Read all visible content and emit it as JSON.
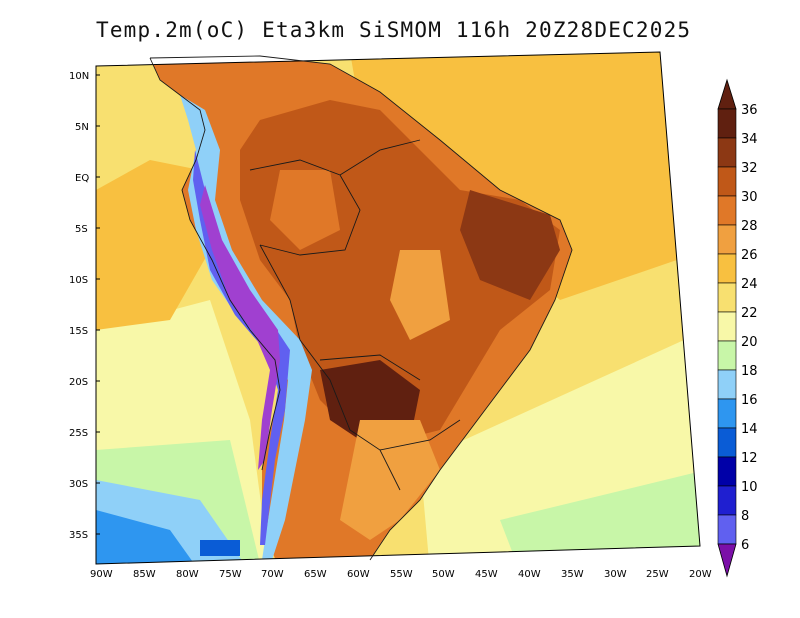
{
  "title": "Temp.2m(oC) Eta3km SiSMOM 116h 20Z28DEC2025",
  "map": {
    "variable": "2 m temperature",
    "units": "oC",
    "lat_ticks": [
      "10N",
      "5N",
      "EQ",
      "5S",
      "10S",
      "15S",
      "20S",
      "25S",
      "30S",
      "35S"
    ],
    "lon_ticks": [
      "90W",
      "85W",
      "80W",
      "75W",
      "70W",
      "65W",
      "60W",
      "55W",
      "50W",
      "45W",
      "40W",
      "35W",
      "30W",
      "25W",
      "20W"
    ]
  },
  "colorbar": {
    "labels": [
      "6",
      "8",
      "10",
      "12",
      "14",
      "16",
      "18",
      "20",
      "22",
      "24",
      "26",
      "28",
      "30",
      "32",
      "34",
      "36"
    ],
    "colors": [
      "#7b0fa8",
      "#a040d0",
      "#6060f0",
      "#1f1fd0",
      "#0000a8",
      "#0a5cd6",
      "#2e96f0",
      "#8fd0f8",
      "#c8f6a8",
      "#f8f8a8",
      "#f8e070",
      "#f8c040",
      "#f0a040",
      "#e07828",
      "#c05818",
      "#8c3814",
      "#602010"
    ]
  }
}
